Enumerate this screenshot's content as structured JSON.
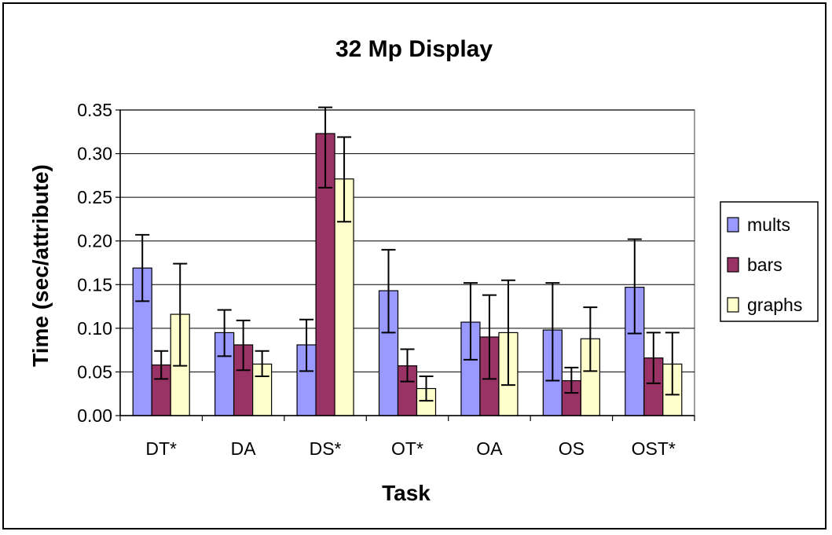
{
  "chart_data": {
    "type": "bar",
    "title": "32 Mp Display",
    "xlabel": "Task",
    "ylabel": "Time (sec/attribute)",
    "ylim": [
      0,
      0.35
    ],
    "yticks": [
      0.0,
      0.05,
      0.1,
      0.15,
      0.2,
      0.25,
      0.3,
      0.35
    ],
    "ytick_labels": [
      "0.00",
      "0.05",
      "0.10",
      "0.15",
      "0.20",
      "0.25",
      "0.30",
      "0.35"
    ],
    "grid": true,
    "legend_position": "right",
    "categories": [
      "DT*",
      "DA",
      "DS*",
      "OT*",
      "OA",
      "OS",
      "OST*"
    ],
    "series": [
      {
        "name": "mults",
        "color": "#9999ff",
        "values": [
          0.169,
          0.095,
          0.081,
          0.143,
          0.107,
          0.098,
          0.147
        ],
        "err_low": [
          0.131,
          0.068,
          0.051,
          0.095,
          0.064,
          0.04,
          0.094
        ],
        "err_high": [
          0.207,
          0.121,
          0.11,
          0.19,
          0.152,
          0.152,
          0.202
        ]
      },
      {
        "name": "bars",
        "color": "#993366",
        "values": [
          0.058,
          0.081,
          0.323,
          0.057,
          0.09,
          0.04,
          0.066
        ],
        "err_low": [
          0.042,
          0.052,
          0.261,
          0.039,
          0.042,
          0.026,
          0.037
        ],
        "err_high": [
          0.074,
          0.109,
          0.353,
          0.076,
          0.138,
          0.055,
          0.095
        ]
      },
      {
        "name": "graphs",
        "color": "#ffffcc",
        "values": [
          0.116,
          0.059,
          0.271,
          0.031,
          0.095,
          0.088,
          0.059
        ],
        "err_low": [
          0.057,
          0.045,
          0.222,
          0.017,
          0.035,
          0.051,
          0.024
        ],
        "err_high": [
          0.174,
          0.074,
          0.319,
          0.045,
          0.155,
          0.124,
          0.095
        ]
      }
    ]
  }
}
